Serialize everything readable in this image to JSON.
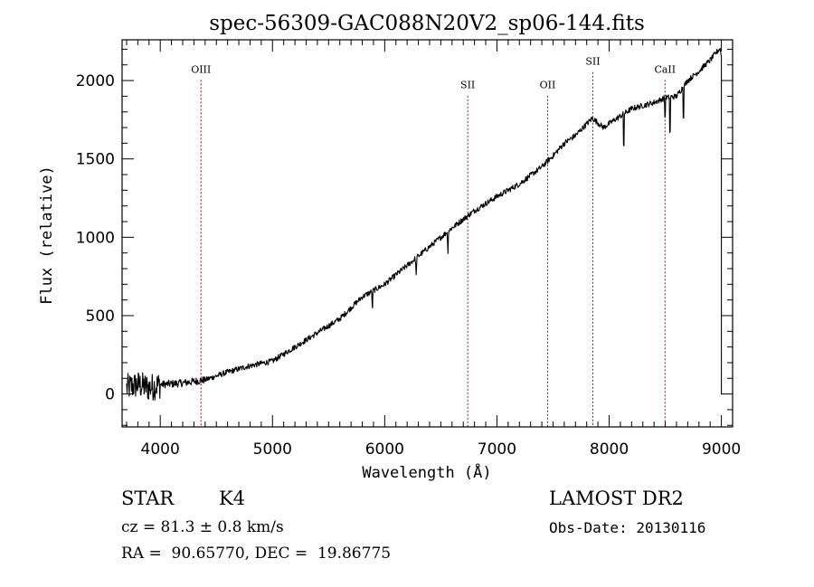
{
  "chart_data": {
    "type": "line",
    "title": "spec-56309-GAC088N20V2_sp06-144.fits",
    "xlabel": "Wavelength (Å)",
    "ylabel": "Flux (relative)",
    "xlim": [
      3660,
      9100
    ],
    "ylim": [
      -210,
      2260
    ],
    "grid": false,
    "x_ticks": [
      4000,
      5000,
      6000,
      7000,
      8000,
      9000
    ],
    "x_tick_labels": [
      "4000",
      "5000",
      "6000",
      "7000",
      "8000",
      "9000"
    ],
    "y_ticks": [
      0,
      500,
      1000,
      1500,
      2000
    ],
    "y_tick_labels": [
      "0",
      "500",
      "1000",
      "1500",
      "2000"
    ],
    "series": [
      {
        "name": "spectrum",
        "color": "#000000",
        "x": [
          3700,
          3800,
          3900,
          4000,
          4200,
          4400,
          4600,
          4800,
          5000,
          5200,
          5400,
          5600,
          5800,
          6000,
          6200,
          6400,
          6600,
          6800,
          7000,
          7200,
          7400,
          7500,
          7600,
          7700,
          7850,
          7950,
          8050,
          8200,
          8400,
          8500,
          8600,
          8700,
          8800,
          8900,
          8980
        ],
        "y": [
          40,
          60,
          40,
          60,
          70,
          90,
          140,
          180,
          210,
          300,
          390,
          480,
          620,
          700,
          820,
          940,
          1060,
          1170,
          1260,
          1340,
          1450,
          1520,
          1600,
          1650,
          1760,
          1700,
          1750,
          1820,
          1860,
          1890,
          1900,
          2000,
          2060,
          2130,
          2200
        ],
        "absorption": [
          {
            "x": 5890,
            "depth": 150
          },
          {
            "x": 6280,
            "depth": 120
          },
          {
            "x": 6563,
            "depth": 150
          },
          {
            "x": 8130,
            "depth": 300
          },
          {
            "x": 8498,
            "depth": 180
          },
          {
            "x": 8542,
            "depth": 340
          },
          {
            "x": 8662,
            "depth": 280
          }
        ],
        "tail": {
          "x": 9000,
          "y_drop": 0
        }
      }
    ],
    "line_markers": [
      {
        "label": "OIII",
        "x": 4363,
        "label_flux": 2050
      },
      {
        "label": "SII",
        "x": 6740,
        "label_flux": 1950
      },
      {
        "label": "OII",
        "x": 7452,
        "label_flux": 1950
      },
      {
        "label": "SII",
        "x": 7855,
        "label_flux": 2100
      },
      {
        "label": "CaII",
        "x": 8498,
        "label_flux": 2050
      }
    ],
    "marker_color": "#8b1a1a"
  },
  "info": {
    "class": "STAR",
    "subclass": "K4",
    "cz": "cz = 81.3 ± 0.8 km/s",
    "coords": "RA =  90.65770, DEC =  19.86775",
    "survey": "LAMOST DR2",
    "obs_date": "Obs-Date: 20130116"
  }
}
